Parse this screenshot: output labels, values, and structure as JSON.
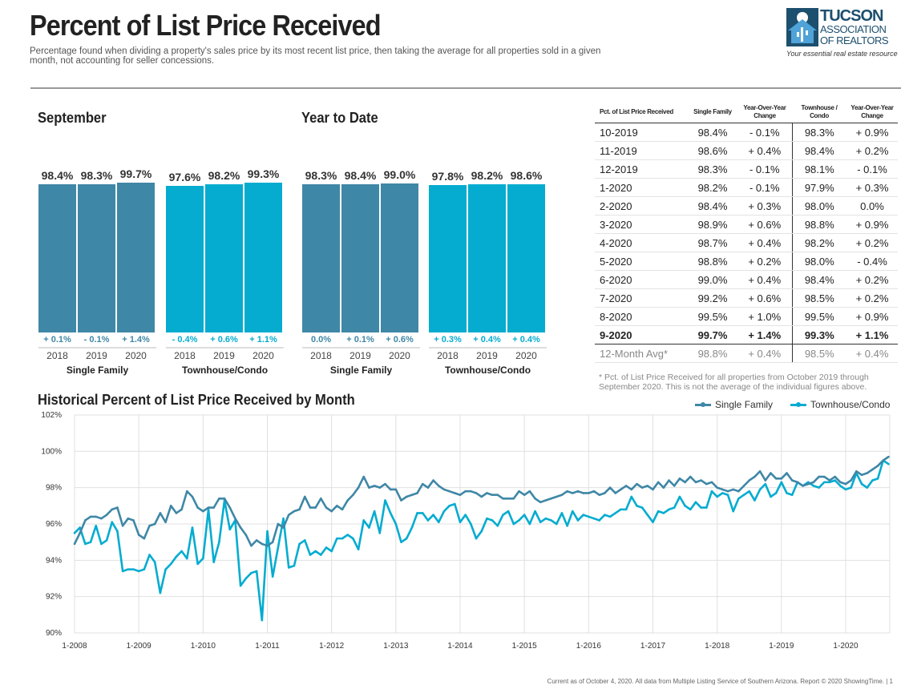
{
  "header": {
    "title": "Percent of List Price Received",
    "subtitle": "Percentage found when dividing a property's sales price by its most recent list price, then taking the average for all properties sold in a given month, not accounting for seller concessions."
  },
  "logo": {
    "line1": "TUCSON",
    "line2": "ASSOCIATION",
    "line3": "OF REALTORS",
    "tagline": "Your essential real estate resource"
  },
  "colors": {
    "single_family": "#3f87a6",
    "townhouse": "#05acd0"
  },
  "bar_charts": [
    {
      "title": "September",
      "groups": [
        {
          "name": "Single Family",
          "years": [
            "2018",
            "2019",
            "2020"
          ],
          "values": [
            "98.4%",
            "98.3%",
            "99.7%"
          ],
          "nums": [
            98.4,
            98.3,
            99.7
          ],
          "changes": [
            "+ 0.1%",
            "- 0.1%",
            "+ 1.4%"
          ]
        },
        {
          "name": "Townhouse/Condo",
          "years": [
            "2018",
            "2019",
            "2020"
          ],
          "values": [
            "97.6%",
            "98.2%",
            "99.3%"
          ],
          "nums": [
            97.6,
            98.2,
            99.3
          ],
          "changes": [
            "- 0.4%",
            "+ 0.6%",
            "+ 1.1%"
          ]
        }
      ]
    },
    {
      "title": "Year to Date",
      "groups": [
        {
          "name": "Single Family",
          "years": [
            "2018",
            "2019",
            "2020"
          ],
          "values": [
            "98.3%",
            "98.4%",
            "99.0%"
          ],
          "nums": [
            98.3,
            98.4,
            99.0
          ],
          "changes": [
            "0.0%",
            "+ 0.1%",
            "+ 0.6%"
          ]
        },
        {
          "name": "Townhouse/Condo",
          "years": [
            "2018",
            "2019",
            "2020"
          ],
          "values": [
            "97.8%",
            "98.2%",
            "98.6%"
          ],
          "nums": [
            97.8,
            98.2,
            98.6
          ],
          "changes": [
            "+ 0.3%",
            "+ 0.4%",
            "+ 0.4%"
          ]
        }
      ]
    }
  ],
  "table": {
    "headers": [
      "Pct. of List Price Received",
      "Single Family",
      "Year-Over-Year Change",
      "Townhouse / Condo",
      "Year-Over-Year Change"
    ],
    "rows": [
      [
        "10-2019",
        "98.4%",
        "- 0.1%",
        "98.3%",
        "+ 0.9%"
      ],
      [
        "11-2019",
        "98.6%",
        "+ 0.4%",
        "98.4%",
        "+ 0.2%"
      ],
      [
        "12-2019",
        "98.3%",
        "- 0.1%",
        "98.1%",
        "- 0.1%"
      ],
      [
        "1-2020",
        "98.2%",
        "- 0.1%",
        "97.9%",
        "+ 0.3%"
      ],
      [
        "2-2020",
        "98.4%",
        "+ 0.3%",
        "98.0%",
        "0.0%"
      ],
      [
        "3-2020",
        "98.9%",
        "+ 0.6%",
        "98.8%",
        "+ 0.9%"
      ],
      [
        "4-2020",
        "98.7%",
        "+ 0.4%",
        "98.2%",
        "+ 0.2%"
      ],
      [
        "5-2020",
        "98.8%",
        "+ 0.2%",
        "98.0%",
        "- 0.4%"
      ],
      [
        "6-2020",
        "99.0%",
        "+ 0.4%",
        "98.4%",
        "+ 0.2%"
      ],
      [
        "7-2020",
        "99.2%",
        "+ 0.6%",
        "98.5%",
        "+ 0.2%"
      ],
      [
        "8-2020",
        "99.5%",
        "+ 1.0%",
        "99.5%",
        "+ 0.9%"
      ],
      [
        "9-2020",
        "99.7%",
        "+ 1.4%",
        "99.3%",
        "+ 1.1%"
      ],
      [
        "12-Month Avg*",
        "98.8%",
        "+ 0.4%",
        "98.5%",
        "+ 0.4%"
      ]
    ],
    "note": "* Pct. of List Price Received for all properties from October 2019 through September 2020. This is not the average of the individual figures above."
  },
  "chart_data": {
    "type": "line",
    "title": "Historical Percent of List Price Received by Month",
    "x_start": "1-2008",
    "x_end": "9-2020",
    "x_ticks": [
      "1-2008",
      "1-2009",
      "1-2010",
      "1-2011",
      "1-2012",
      "1-2013",
      "1-2014",
      "1-2015",
      "1-2016",
      "1-2017",
      "1-2018",
      "1-2019",
      "1-2020"
    ],
    "y_ticks": [
      "90%",
      "92%",
      "94%",
      "96%",
      "98%",
      "100%",
      "102%"
    ],
    "ylim": [
      90,
      102
    ],
    "grid": true,
    "legend": "top-right",
    "series": [
      {
        "name": "Single Family",
        "values": [
          94.9,
          95.5,
          96.2,
          96.4,
          96.4,
          96.3,
          96.5,
          96.8,
          96.9,
          95.9,
          96.3,
          96.2,
          95.4,
          95.2,
          95.9,
          96.0,
          96.6,
          96.1,
          97.0,
          96.6,
          96.8,
          97.8,
          97.5,
          96.9,
          96.7,
          96.9,
          96.9,
          97.4,
          97.4,
          96.9,
          96.3,
          95.8,
          95.4,
          94.8,
          95.1,
          94.9,
          94.8,
          95.0,
          96.0,
          95.8,
          96.5,
          96.7,
          96.8,
          97.5,
          96.9,
          96.9,
          97.4,
          96.9,
          96.7,
          97.0,
          96.8,
          97.3,
          97.6,
          98.0,
          98.6,
          98.0,
          98.1,
          98.0,
          98.2,
          97.9,
          97.9,
          97.3,
          97.5,
          97.6,
          97.7,
          98.2,
          98.0,
          98.4,
          98.1,
          97.9,
          97.8,
          97.7,
          97.6,
          97.8,
          97.8,
          97.7,
          97.5,
          97.7,
          97.6,
          97.6,
          97.4,
          97.4,
          97.4,
          97.8,
          97.6,
          97.8,
          97.4,
          97.2,
          97.3,
          97.4,
          97.5,
          97.6,
          97.8,
          97.7,
          97.8,
          97.7,
          97.7,
          97.8,
          97.6,
          97.7,
          98.0,
          97.7,
          97.9,
          98.1,
          97.9,
          98.2,
          98.0,
          98.1,
          97.9,
          98.3,
          98.0,
          98.4,
          98.1,
          98.5,
          98.3,
          98.6,
          98.3,
          98.4,
          98.2,
          98.3,
          98.0,
          97.9,
          97.8,
          97.9,
          97.8,
          98.1,
          98.4,
          98.6,
          98.9,
          98.4,
          98.8,
          98.5,
          98.5,
          98.8,
          98.4,
          98.3,
          98.1,
          98.2,
          98.3,
          98.6,
          98.6,
          98.4,
          98.6,
          98.3,
          98.2,
          98.4,
          98.9,
          98.7,
          98.8,
          99.0,
          99.2,
          99.5,
          99.7
        ]
      },
      {
        "name": "Townhouse/Condo",
        "values": [
          95.5,
          95.8,
          94.9,
          95.0,
          95.9,
          94.9,
          95.1,
          96.1,
          95.6,
          93.4,
          93.5,
          93.5,
          93.4,
          93.5,
          94.3,
          93.9,
          92.2,
          93.5,
          93.8,
          94.2,
          94.5,
          94.1,
          95.8,
          93.8,
          94.1,
          96.8,
          93.9,
          95.0,
          97.3,
          95.7,
          96.2,
          92.6,
          93.0,
          93.3,
          93.4,
          90.7,
          95.6,
          93.1,
          94.7,
          96.3,
          93.6,
          93.7,
          94.9,
          95.1,
          94.3,
          94.5,
          94.3,
          94.7,
          94.5,
          95.2,
          95.2,
          95.4,
          95.2,
          94.6,
          96.2,
          95.8,
          96.7,
          95.5,
          97.3,
          96.6,
          96.0,
          95.0,
          95.2,
          95.8,
          96.6,
          96.6,
          96.2,
          96.5,
          96.1,
          96.7,
          97.0,
          97.1,
          96.1,
          96.5,
          96.0,
          95.2,
          95.6,
          96.3,
          96.2,
          95.9,
          96.5,
          96.7,
          96.0,
          96.2,
          96.5,
          96.0,
          96.7,
          96.1,
          96.3,
          96.2,
          96.0,
          96.6,
          95.9,
          96.7,
          96.2,
          96.5,
          96.4,
          96.3,
          96.2,
          96.5,
          96.4,
          96.6,
          96.8,
          96.8,
          97.5,
          97.0,
          96.9,
          96.5,
          96.1,
          96.7,
          96.6,
          96.8,
          96.9,
          97.5,
          97.0,
          96.8,
          97.2,
          96.9,
          96.9,
          97.8,
          97.5,
          97.7,
          97.6,
          96.7,
          97.4,
          97.6,
          97.8,
          97.3,
          97.9,
          98.2,
          97.5,
          97.7,
          98.3,
          97.7,
          97.6,
          98.3,
          98.1,
          98.3,
          98.1,
          98.0,
          98.3,
          98.3,
          98.4,
          98.1,
          97.9,
          98.0,
          98.8,
          98.2,
          98.0,
          98.4,
          98.5,
          99.5,
          99.3
        ]
      }
    ]
  },
  "footer": "Current as of October 4, 2020. All data from Multiple Listing Service of Southern Arizona. Report © 2020 ShowingTime. | 1"
}
